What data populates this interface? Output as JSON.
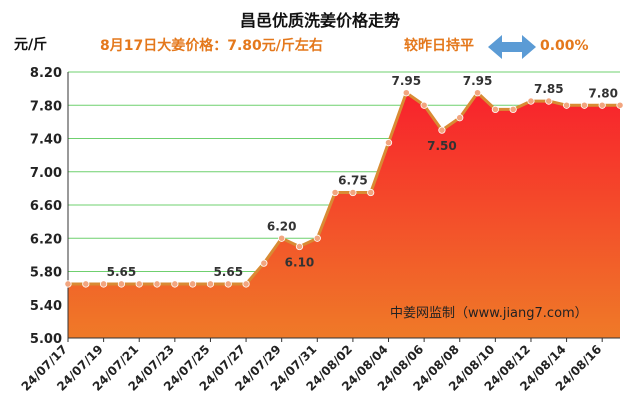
{
  "chart_data": {
    "type": "area",
    "title": "昌邑优质洗姜价格走势",
    "ylabel": "元/斤",
    "price_note": "8月17日大姜价格：7.80元/斤左右",
    "change_label": "较昨日持平",
    "change_value": "0.00%",
    "watermark": "中姜网监制（www.jiang7.com）",
    "ylim": [
      5.0,
      8.2
    ],
    "yticks": [
      "5.00",
      "5.40",
      "5.80",
      "6.20",
      "6.60",
      "7.00",
      "7.40",
      "7.80",
      "8.20"
    ],
    "xtick_labels": [
      "24/07/17",
      "24/07/19",
      "24/07/21",
      "24/07/23",
      "24/07/25",
      "24/07/27",
      "24/07/29",
      "24/07/31",
      "24/08/02",
      "24/08/04",
      "24/08/06",
      "24/08/08",
      "24/08/10",
      "24/08/12",
      "24/08/14",
      "24/08/16"
    ],
    "x": [
      "24/07/17",
      "24/07/18",
      "24/07/19",
      "24/07/20",
      "24/07/21",
      "24/07/22",
      "24/07/23",
      "24/07/24",
      "24/07/25",
      "24/07/26",
      "24/07/27",
      "24/07/28",
      "24/07/29",
      "24/07/30",
      "24/07/31",
      "24/08/01",
      "24/08/02",
      "24/08/03",
      "24/08/04",
      "24/08/05",
      "24/08/06",
      "24/08/07",
      "24/08/08",
      "24/08/09",
      "24/08/10",
      "24/08/11",
      "24/08/12",
      "24/08/13",
      "24/08/14",
      "24/08/15",
      "24/08/16",
      "24/08/17"
    ],
    "values": [
      5.65,
      5.65,
      5.65,
      5.65,
      5.65,
      5.65,
      5.65,
      5.65,
      5.65,
      5.65,
      5.65,
      5.9,
      6.2,
      6.1,
      6.2,
      6.75,
      6.75,
      6.75,
      7.35,
      7.95,
      7.8,
      7.5,
      7.65,
      7.95,
      7.75,
      7.75,
      7.85,
      7.85,
      7.8,
      7.8,
      7.8,
      7.8
    ],
    "data_labels": [
      {
        "index": 3,
        "text": "5.65"
      },
      {
        "index": 9,
        "text": "5.65"
      },
      {
        "index": 12,
        "text": "6.20"
      },
      {
        "index": 13,
        "text": "6.10"
      },
      {
        "index": 16,
        "text": "6.75"
      },
      {
        "index": 19,
        "text": "7.95"
      },
      {
        "index": 21,
        "text": "7.50"
      },
      {
        "index": 23,
        "text": "7.95"
      },
      {
        "index": 27,
        "text": "7.85"
      },
      {
        "index": 31,
        "text": "7.80"
      }
    ],
    "colors": {
      "fill_top": "#f8222c",
      "fill_bottom": "#ef7a28",
      "line": "#d98b34",
      "marker": "#f2a57f",
      "grid": "#6fd06f",
      "price_text": "#e4781c",
      "arrow": "#5b9bd5"
    },
    "grid": true
  }
}
